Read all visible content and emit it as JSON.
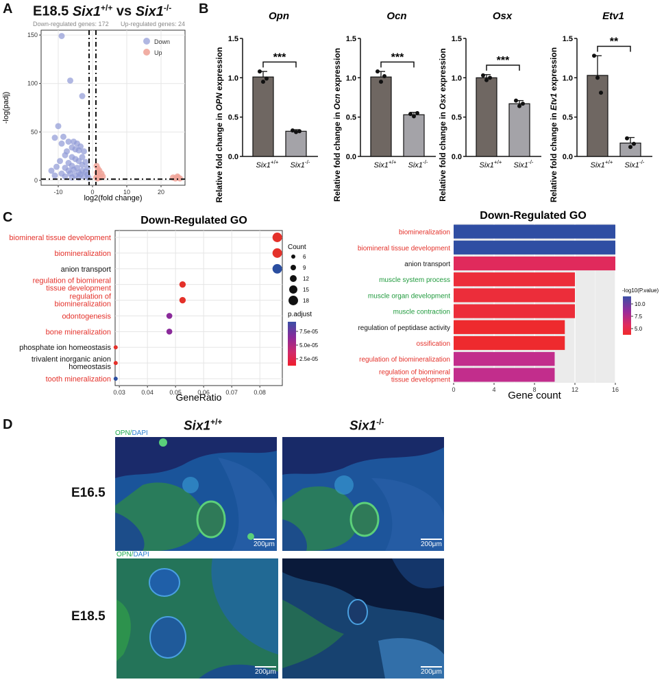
{
  "panel_letters": {
    "a": "A",
    "b": "B",
    "c": "C",
    "d": "D"
  },
  "panelA": {
    "title_prefix": "E18.5",
    "title_wt": "Six1",
    "title_wt_sup": "+/+",
    "title_vs": "vs",
    "title_ko": "Six1",
    "title_ko_sup": "-/-",
    "down_text": "Down-regulated genes: 172",
    "up_text": "Up-regulated genes: 24",
    "legend_down": "Down",
    "legend_up": "Up",
    "colors": {
      "down": "#8f98d6",
      "up": "#f0a59a"
    }
  },
  "panelB_common": {
    "x_wt": "Six1",
    "x_wt_sup": "+/+",
    "x_ko": "Six1",
    "x_ko_sup": "-/-",
    "ylab_prefix": "Relative fold change in ",
    "ylab_suffix": " expression",
    "bar_colors": {
      "wt": "#6f6762",
      "ko": "#a4a3a8"
    }
  },
  "panelC_dot": {
    "title": "Down-Regulated GO",
    "xlabel": "GeneRatio",
    "count_title": "Count",
    "count_values": [
      "6",
      "9",
      "12",
      "15",
      "18"
    ],
    "padj_title": "p.adjust",
    "padj_ticks": [
      "7.5e-05",
      "5.0e-05",
      "2.5e-05"
    ]
  },
  "panelC_bar": {
    "title": "Down-Regulated GO",
    "xlabel": "Gene count",
    "legend_title": "-log10(P.value)",
    "legend_ticks": [
      "10.0",
      "7.5",
      "5.0"
    ]
  },
  "panelD": {
    "col_wt": "Six1",
    "col_wt_sup": "+/+",
    "col_ko": "Six1",
    "col_ko_sup": "-/-",
    "row1": "E16.5",
    "row2": "E18.5",
    "stain_opn": "OPN",
    "stain_sep": "/",
    "stain_dapi": "DAPI",
    "scale": "200μm"
  },
  "chart_data": [
    {
      "type": "scatter",
      "name": "volcano",
      "xlabel": "log2(fold change)",
      "ylabel": "-log(padj)",
      "xlim": [
        -15,
        27
      ],
      "ylim": [
        -5,
        155
      ],
      "xticks": [
        -10,
        0,
        10,
        20
      ],
      "yticks": [
        0,
        50,
        100,
        150
      ],
      "series": [
        {
          "name": "Down",
          "points": [
            [
              -9,
              149
            ],
            [
              -6.5,
              103
            ],
            [
              -3,
              87
            ],
            [
              -10,
              56
            ],
            [
              -8.5,
              45
            ],
            [
              -11,
              44
            ],
            [
              -7,
              40
            ],
            [
              -5.5,
              40
            ],
            [
              -4.5,
              38
            ],
            [
              -9,
              38
            ],
            [
              -3.5,
              35
            ],
            [
              -6,
              34
            ],
            [
              -5,
              32
            ],
            [
              -4,
              31
            ],
            [
              -7.5,
              30
            ],
            [
              -2.5,
              30
            ],
            [
              -8,
              26
            ],
            [
              -6,
              24
            ],
            [
              -3,
              24
            ],
            [
              -5,
              22
            ],
            [
              -9.5,
              20
            ],
            [
              -4,
              20
            ],
            [
              -2,
              19
            ],
            [
              -7,
              18
            ],
            [
              -3,
              16
            ],
            [
              -6,
              15
            ],
            [
              -10.5,
              14
            ],
            [
              -8,
              13
            ],
            [
              -4.5,
              13
            ],
            [
              -1.5,
              13
            ],
            [
              -5.5,
              11
            ],
            [
              -3,
              10
            ],
            [
              -7,
              10
            ],
            [
              -12,
              10
            ],
            [
              -2,
              9
            ],
            [
              -4,
              8
            ],
            [
              -6.5,
              7
            ],
            [
              -9,
              7
            ],
            [
              -1.5,
              6
            ],
            [
              -3.5,
              6
            ],
            [
              -5,
              5
            ],
            [
              -2.5,
              4
            ],
            [
              -8,
              4
            ],
            [
              -11,
              5
            ],
            [
              -1.2,
              3
            ],
            [
              -4,
              3
            ],
            [
              -6,
              3
            ]
          ]
        },
        {
          "name": "Up",
          "points": [
            [
              1.2,
              15
            ],
            [
              1.6,
              12
            ],
            [
              2,
              10
            ],
            [
              1.3,
              8
            ],
            [
              2.6,
              7
            ],
            [
              1.8,
              5
            ],
            [
              3,
              4
            ],
            [
              1.1,
              3
            ],
            [
              2.2,
              3
            ],
            [
              23.5,
              3
            ],
            [
              24.2,
              2
            ],
            [
              25,
              3
            ],
            [
              25.5,
              2
            ],
            [
              24.8,
              4
            ],
            [
              1.5,
              2
            ]
          ]
        }
      ]
    },
    {
      "type": "bar",
      "gene": "Opn",
      "ylabel": "Relative fold change in OPN expression",
      "categories": [
        "Six1+/+",
        "Six1-/-"
      ],
      "values": [
        1.01,
        0.32
      ],
      "errors": [
        0.07,
        0.02
      ],
      "ylim": [
        0,
        1.5
      ],
      "yticks": [
        "0.0",
        "0.5",
        "1.0",
        "1.5"
      ],
      "significance": "***",
      "points": [
        [
          1.08,
          0.95,
          0.99
        ],
        [
          0.33,
          0.31,
          0.32
        ]
      ]
    },
    {
      "type": "bar",
      "gene": "Ocn",
      "ylabel": "Relative fold change in Ocn expression",
      "categories": [
        "Six1+/+",
        "Six1-/-"
      ],
      "values": [
        1.01,
        0.53
      ],
      "errors": [
        0.07,
        0.03
      ],
      "ylim": [
        0,
        1.5
      ],
      "yticks": [
        "0.0",
        "0.5",
        "1.0",
        "1.5"
      ],
      "significance": "***",
      "points": [
        [
          1.08,
          0.95,
          1.02
        ],
        [
          0.54,
          0.51,
          0.55
        ]
      ]
    },
    {
      "type": "bar",
      "gene": "Osx",
      "ylabel": "Relative fold change in Osx expression",
      "categories": [
        "Six1+/+",
        "Six1-/-"
      ],
      "values": [
        1.0,
        0.67
      ],
      "errors": [
        0.04,
        0.04
      ],
      "ylim": [
        0,
        1.5
      ],
      "yticks": [
        "0.0",
        "0.5",
        "1.0",
        "1.5"
      ],
      "significance": "***",
      "points": [
        [
          1.03,
          0.97,
          1.0
        ],
        [
          0.71,
          0.64,
          0.67
        ]
      ]
    },
    {
      "type": "bar",
      "gene": "Etv1",
      "ylabel": "Relative fold change in Etv1 expression",
      "categories": [
        "Six1+/+",
        "Six1-/-"
      ],
      "values": [
        1.03,
        0.17
      ],
      "errors": [
        0.25,
        0.07
      ],
      "ylim": [
        0,
        1.5
      ],
      "yticks": [
        "0.0",
        "0.5",
        "1.0",
        "1.5"
      ],
      "significance": "**",
      "points": [
        [
          1.28,
          1.0,
          0.81
        ],
        [
          0.23,
          0.12,
          0.16
        ]
      ]
    },
    {
      "type": "scatter",
      "name": "GO dot plot",
      "xlabel": "GeneRatio",
      "xlim": [
        0.0285,
        0.088
      ],
      "xticks": [
        0.03,
        0.04,
        0.05,
        0.06,
        0.07,
        0.08
      ],
      "terms": [
        {
          "label": "biomineral tissue development",
          "ratio": 0.0862,
          "count": 18,
          "padj": 1e-05,
          "color": "#e4312a",
          "red": true
        },
        {
          "label": "biomineralization",
          "ratio": 0.0862,
          "count": 18,
          "padj": 1e-05,
          "color": "#e4312a",
          "red": true
        },
        {
          "label": "anion transport",
          "ratio": 0.0862,
          "count": 18,
          "padj": 8.5e-05,
          "color": "#2a4ea0",
          "red": false
        },
        {
          "label": "regulation of biomineral tissue development",
          "ratio": 0.0525,
          "count": 11,
          "padj": 1.2e-05,
          "color": "#e4312a",
          "red": true
        },
        {
          "label": "regulation of biomineralization",
          "ratio": 0.0525,
          "count": 11,
          "padj": 1.2e-05,
          "color": "#e4312a",
          "red": true
        },
        {
          "label": "odontogenesis",
          "ratio": 0.0478,
          "count": 10,
          "padj": 5e-05,
          "color": "#8a2a9a",
          "red": true
        },
        {
          "label": "bone mineralization",
          "ratio": 0.0478,
          "count": 10,
          "padj": 5e-05,
          "color": "#8a2a9a",
          "red": true
        },
        {
          "label": "phosphate ion homeostasis",
          "ratio": 0.0287,
          "count": 6,
          "padj": 1e-05,
          "color": "#e4312a",
          "red": false
        },
        {
          "label": "trivalent inorganic anion homeostasis",
          "ratio": 0.0287,
          "count": 6,
          "padj": 1e-05,
          "color": "#e4312a",
          "red": false
        },
        {
          "label": "tooth mineralization",
          "ratio": 0.0287,
          "count": 6,
          "padj": 8e-05,
          "color": "#2a4ea0",
          "red": true
        }
      ]
    },
    {
      "type": "bar",
      "name": "GO bar chart",
      "orientation": "horizontal",
      "xlabel": "Gene count",
      "xlim": [
        0,
        16
      ],
      "xticks": [
        0,
        4,
        8,
        12,
        16
      ],
      "terms": [
        {
          "label": "biomineralization",
          "count": 16,
          "color": "#2f4ea3",
          "label_color": "#e4312a"
        },
        {
          "label": "biomineral tissue development",
          "count": 16,
          "color": "#2f4ea3",
          "label_color": "#e4312a"
        },
        {
          "label": "anion transport",
          "count": 16,
          "color": "#e02a5c",
          "label_color": "#111111"
        },
        {
          "label": "muscle system process",
          "count": 12,
          "color": "#ec2d3a",
          "label_color": "#1f9a3c"
        },
        {
          "label": "muscle organ development",
          "count": 12,
          "color": "#ec2d3a",
          "label_color": "#1f9a3c"
        },
        {
          "label": "muscle contraction",
          "count": 12,
          "color": "#ec2d3a",
          "label_color": "#1f9a3c"
        },
        {
          "label": "regulation of peptidase activity",
          "count": 11,
          "color": "#ee2a2e",
          "label_color": "#111111"
        },
        {
          "label": "ossification",
          "count": 11,
          "color": "#ee2a2e",
          "label_color": "#e4312a"
        },
        {
          "label": "regulation of biomineralization",
          "count": 10,
          "color": "#c22d8c",
          "label_color": "#e4312a"
        },
        {
          "label": "regulation of biomineral tissue development",
          "count": 10,
          "color": "#c22d8c",
          "label_color": "#e4312a"
        }
      ]
    }
  ]
}
